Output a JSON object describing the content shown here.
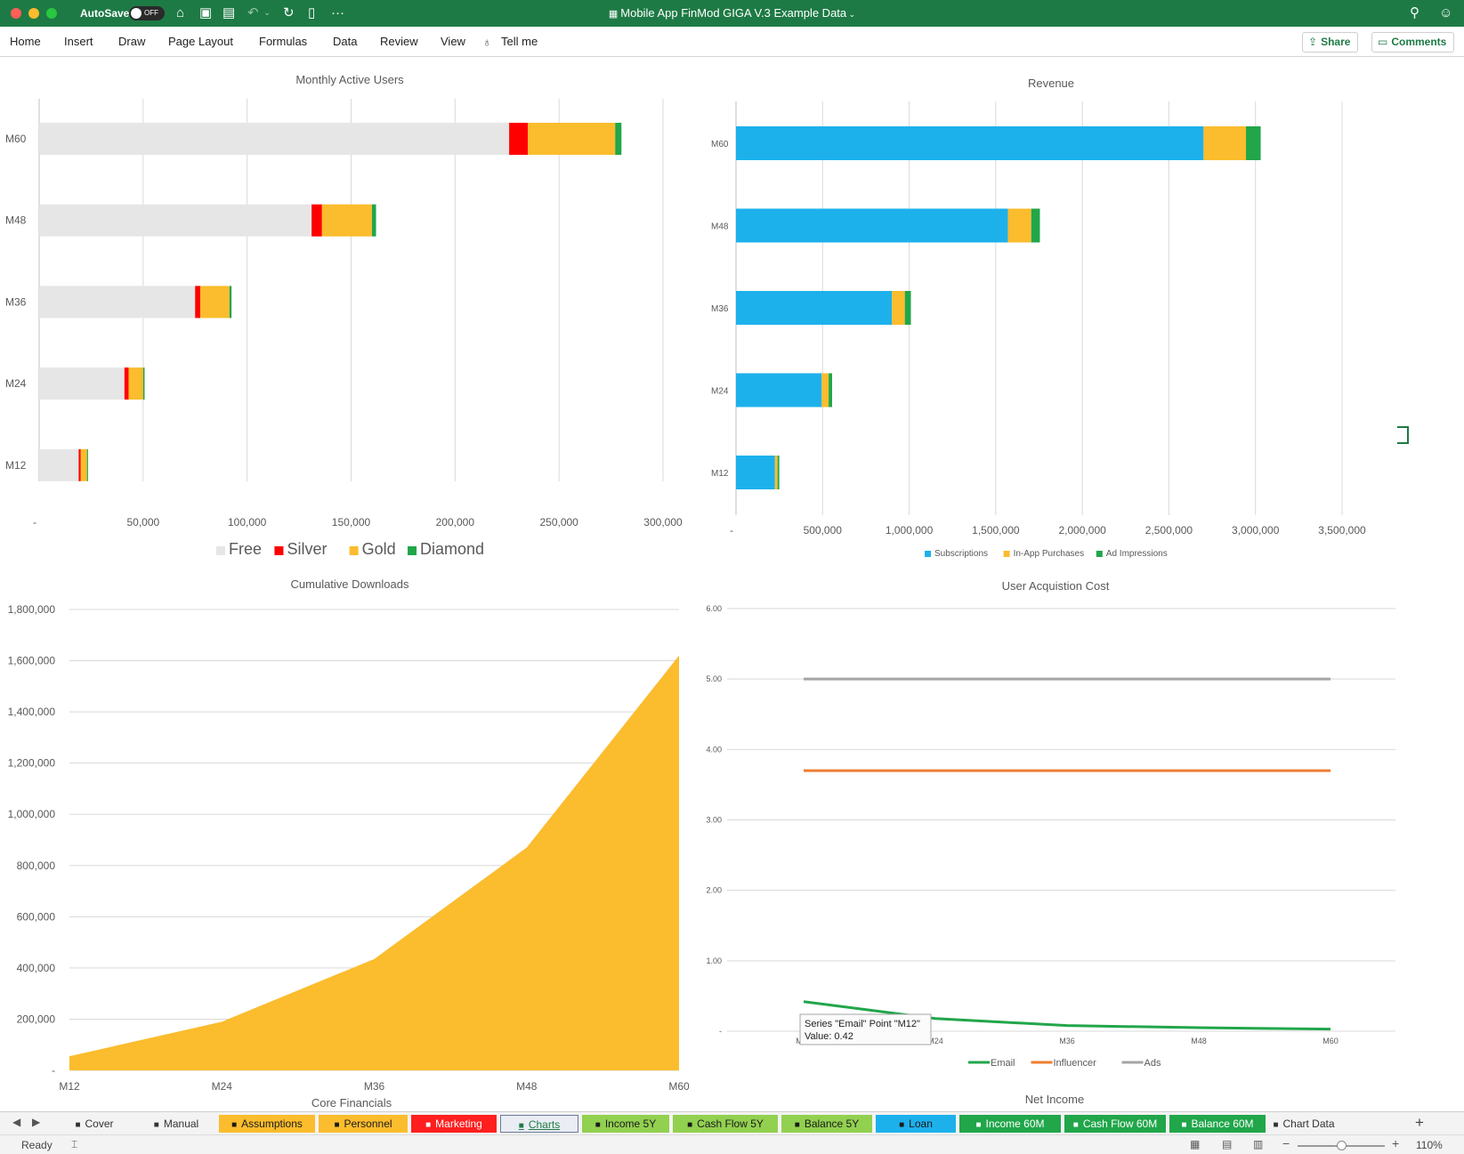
{
  "window": {
    "autosave_label": "AutoSave",
    "autosave_state": "OFF",
    "title": "Mobile App FinMod GIGA V.3 Example Data",
    "toolbar_icons": [
      "home-icon",
      "save-icon",
      "save-as-icon",
      "undo-icon",
      "redo-icon",
      "new-document-icon",
      "more-icon"
    ],
    "accent_color": "#1e7a45"
  },
  "ribbon": {
    "menu": [
      "Home",
      "Insert",
      "Draw",
      "Page Layout",
      "Formulas",
      "Data",
      "Review",
      "View"
    ],
    "tell_me": "Tell me",
    "share_label": "Share",
    "comments_label": "Comments"
  },
  "charts": {
    "mau": {
      "title": "Monthly Active Users",
      "type": "bar",
      "orientation": "horizontal-stacked",
      "categories": [
        "M60",
        "M48",
        "M36",
        "M24",
        "M12"
      ],
      "series": [
        {
          "name": "Free",
          "color": "#e6e6e6",
          "values": [
            226000,
            131000,
            75000,
            41000,
            19000
          ]
        },
        {
          "name": "Silver",
          "color": "#ff0000",
          "values": [
            9000,
            5000,
            2500,
            2000,
            1000
          ]
        },
        {
          "name": "Gold",
          "color": "#fbbc2d",
          "values": [
            42000,
            24000,
            14000,
            7000,
            3000
          ]
        },
        {
          "name": "Diamond",
          "color": "#21a64a",
          "values": [
            3000,
            2000,
            1000,
            700,
            500
          ]
        }
      ],
      "xlim": [
        0,
        300000
      ],
      "xticks": [
        0,
        50000,
        100000,
        150000,
        200000,
        250000,
        300000
      ],
      "xtick_labels": [
        "-",
        "50,000",
        "100,000",
        "150,000",
        "200,000",
        "250,000",
        "300,000"
      ],
      "grid": "vertical",
      "legend": "bottom"
    },
    "revenue": {
      "title": "Revenue",
      "type": "bar",
      "orientation": "horizontal-stacked",
      "categories": [
        "M60",
        "M48",
        "M36",
        "M24",
        "M12"
      ],
      "series": [
        {
          "name": "Subscriptions",
          "color": "#1db1ec",
          "values": [
            2700000,
            1570000,
            900000,
            495000,
            225000
          ]
        },
        {
          "name": "In-App Purchases",
          "color": "#fbbc2d",
          "values": [
            245000,
            135000,
            75000,
            40000,
            15000
          ]
        },
        {
          "name": "Ad Impressions",
          "color": "#21a64a",
          "values": [
            85000,
            50000,
            35000,
            20000,
            10000
          ]
        }
      ],
      "xlim": [
        0,
        3500000
      ],
      "xticks": [
        0,
        500000,
        1000000,
        1500000,
        2000000,
        2500000,
        3000000,
        3500000
      ],
      "xtick_labels": [
        "-",
        "500,000",
        "1,000,000",
        "1,500,000",
        "2,000,000",
        "2,500,000",
        "3,000,000",
        "3,500,000"
      ],
      "grid": "vertical",
      "legend": "bottom"
    },
    "downloads": {
      "title": "Cumulative Downloads",
      "type": "area",
      "categories": [
        "M12",
        "M24",
        "M36",
        "M48",
        "M60"
      ],
      "series": [
        {
          "name": "Downloads",
          "color": "#fbbc2d",
          "values": [
            55000,
            190000,
            435000,
            870000,
            1620000
          ]
        }
      ],
      "ylim": [
        0,
        1800000
      ],
      "yticks": [
        0,
        200000,
        400000,
        600000,
        800000,
        1000000,
        1200000,
        1400000,
        1600000,
        1800000
      ],
      "ytick_labels": [
        "-",
        "200,000",
        "400,000",
        "600,000",
        "800,000",
        "1,000,000",
        "1,200,000",
        "1,400,000",
        "1,600,000",
        "1,800,000"
      ],
      "grid": "horizontal",
      "legend": "none"
    },
    "uac": {
      "title": "User Acquistion Cost",
      "type": "line",
      "categories": [
        "M12",
        "M24",
        "M36",
        "M48",
        "M60"
      ],
      "series": [
        {
          "name": "Email",
          "color": "#21a64a",
          "values": [
            0.42,
            0.18,
            0.08,
            0.05,
            0.03
          ]
        },
        {
          "name": "Influencer",
          "color": "#ed7d31",
          "values": [
            3.7,
            3.7,
            3.7,
            3.7,
            3.7
          ]
        },
        {
          "name": "Ads",
          "color": "#a5a5a5",
          "values": [
            5.0,
            5.0,
            5.0,
            5.0,
            5.0
          ]
        }
      ],
      "ylim": [
        0,
        6
      ],
      "yticks": [
        0,
        1,
        2,
        3,
        4,
        5,
        6
      ],
      "ytick_labels": [
        "-",
        "1.00",
        "2.00",
        "3.00",
        "4.00",
        "5.00",
        "6.00"
      ],
      "grid": "horizontal",
      "legend": "bottom",
      "tooltip": {
        "line1": "Series \"Email\" Point \"M12\"",
        "line2": "Value:  0.42"
      }
    },
    "core_financials": {
      "title": "Core Financials"
    },
    "net_income": {
      "title": "Net Income"
    }
  },
  "tabs": [
    {
      "label": "Cover",
      "color": "#f3f3f3",
      "text_color": "#333333",
      "locked": true
    },
    {
      "label": "Manual",
      "color": "#f3f3f3",
      "text_color": "#333333",
      "locked": true
    },
    {
      "label": "Assumptions",
      "color": "#fbbc2d",
      "text_color": "#1a1a1a",
      "locked": true
    },
    {
      "label": "Personnel",
      "color": "#fbbc2d",
      "text_color": "#1a1a1a",
      "locked": true
    },
    {
      "label": "Marketing",
      "color": "#ff1f1f",
      "text_color": "#ffffff",
      "locked": true
    },
    {
      "label": "Charts",
      "color": "#eaedf3",
      "text_color": "#1e7a45",
      "locked": true,
      "active": true
    },
    {
      "label": "Income 5Y",
      "color": "#92d050",
      "text_color": "#1a1a1a",
      "locked": true
    },
    {
      "label": "Cash Flow 5Y",
      "color": "#92d050",
      "text_color": "#1a1a1a",
      "locked": true
    },
    {
      "label": "Balance 5Y",
      "color": "#92d050",
      "text_color": "#1a1a1a",
      "locked": true
    },
    {
      "label": "Loan",
      "color": "#1db1ec",
      "text_color": "#1a1a1a",
      "locked": true
    },
    {
      "label": "Income 60M",
      "color": "#21a64a",
      "text_color": "#ffffff",
      "locked": true
    },
    {
      "label": "Cash Flow 60M",
      "color": "#21a64a",
      "text_color": "#ffffff",
      "locked": true
    },
    {
      "label": "Balance 60M",
      "color": "#21a64a",
      "text_color": "#ffffff",
      "locked": true
    },
    {
      "label": "Chart Data",
      "color": "#f3f3f3",
      "text_color": "#333333",
      "locked": true
    }
  ],
  "status": {
    "text": "Ready",
    "zoom": "110%"
  }
}
